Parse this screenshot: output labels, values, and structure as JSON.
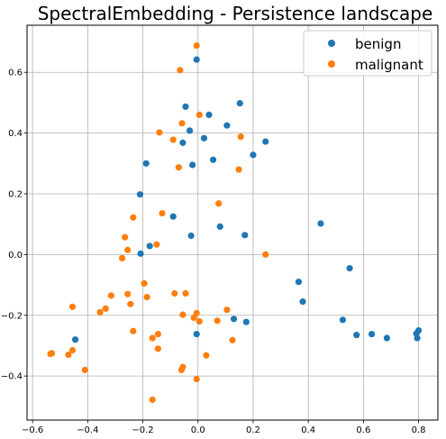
{
  "chart_data": {
    "type": "scatter",
    "title": "SpectralEmbedding - Persistence landscape",
    "xlabel": "",
    "ylabel": "",
    "xlim": [
      -0.62,
      0.87
    ],
    "ylim": [
      -0.545,
      0.755
    ],
    "xticks": [
      -0.6,
      -0.4,
      -0.2,
      0.0,
      0.2,
      0.4,
      0.6,
      0.8
    ],
    "xtick_labels": [
      "−0.6",
      "−0.4",
      "−0.2",
      "0.0",
      "0.2",
      "0.4",
      "0.6",
      "0.8"
    ],
    "yticks": [
      -0.4,
      -0.2,
      0.0,
      0.2,
      0.4,
      0.6
    ],
    "ytick_labels": [
      "−0.4",
      "−0.2",
      "0.0",
      "0.2",
      "0.4",
      "0.6"
    ],
    "grid": true,
    "legend_position": "top-right",
    "series": [
      {
        "name": "benign",
        "color": "#1f77b4",
        "points": [
          [
            -0.005,
            0.642
          ],
          [
            -0.045,
            0.487
          ],
          [
            0.152,
            0.498
          ],
          [
            -0.03,
            0.408
          ],
          [
            0.04,
            0.46
          ],
          [
            0.105,
            0.425
          ],
          [
            0.022,
            0.383
          ],
          [
            -0.055,
            0.368
          ],
          [
            0.245,
            0.372
          ],
          [
            0.2,
            0.328
          ],
          [
            0.055,
            0.312
          ],
          [
            -0.02,
            0.295
          ],
          [
            -0.188,
            0.3
          ],
          [
            -0.21,
            0.198
          ],
          [
            -0.09,
            0.125
          ],
          [
            0.08,
            0.092
          ],
          [
            -0.025,
            0.062
          ],
          [
            0.17,
            0.064
          ],
          [
            -0.175,
            0.028
          ],
          [
            -0.208,
            0.003
          ],
          [
            0.445,
            0.102
          ],
          [
            0.55,
            -0.045
          ],
          [
            0.365,
            -0.09
          ],
          [
            0.38,
            -0.155
          ],
          [
            0.525,
            -0.215
          ],
          [
            0.575,
            -0.265
          ],
          [
            0.63,
            -0.262
          ],
          [
            0.685,
            -0.275
          ],
          [
            0.8,
            -0.25
          ],
          [
            0.792,
            -0.26
          ],
          [
            0.795,
            -0.275
          ],
          [
            0.13,
            -0.212
          ],
          [
            0.175,
            -0.222
          ],
          [
            -0.005,
            -0.262
          ],
          [
            -0.445,
            -0.28
          ]
        ]
      },
      {
        "name": "malignant",
        "color": "#ff7f0e",
        "points": [
          [
            -0.005,
            0.688
          ],
          [
            -0.065,
            0.607
          ],
          [
            0.005,
            0.46
          ],
          [
            -0.058,
            0.432
          ],
          [
            -0.14,
            0.402
          ],
          [
            -0.09,
            0.378
          ],
          [
            -0.07,
            0.287
          ],
          [
            0.155,
            0.388
          ],
          [
            0.148,
            0.28
          ],
          [
            0.075,
            0.168
          ],
          [
            -0.13,
            0.136
          ],
          [
            -0.235,
            0.122
          ],
          [
            -0.265,
            0.057
          ],
          [
            -0.15,
            0.033
          ],
          [
            -0.255,
            0.015
          ],
          [
            -0.275,
            -0.012
          ],
          [
            0.245,
            0.0
          ],
          [
            -0.195,
            -0.095
          ],
          [
            -0.315,
            -0.135
          ],
          [
            -0.255,
            -0.13
          ],
          [
            -0.185,
            -0.14
          ],
          [
            -0.085,
            -0.128
          ],
          [
            -0.045,
            -0.128
          ],
          [
            -0.455,
            -0.172
          ],
          [
            -0.335,
            -0.178
          ],
          [
            -0.245,
            -0.163
          ],
          [
            -0.355,
            -0.19
          ],
          [
            0.105,
            -0.182
          ],
          [
            -0.005,
            -0.193
          ],
          [
            -0.055,
            -0.198
          ],
          [
            -0.015,
            -0.208
          ],
          [
            0.005,
            -0.22
          ],
          [
            0.07,
            -0.218
          ],
          [
            -0.235,
            -0.252
          ],
          [
            -0.165,
            -0.275
          ],
          [
            -0.145,
            -0.262
          ],
          [
            0.125,
            -0.282
          ],
          [
            -0.145,
            -0.31
          ],
          [
            0.03,
            -0.332
          ],
          [
            -0.455,
            -0.315
          ],
          [
            -0.53,
            -0.325
          ],
          [
            -0.535,
            -0.327
          ],
          [
            -0.47,
            -0.33
          ],
          [
            -0.055,
            -0.37
          ],
          [
            -0.06,
            -0.38
          ],
          [
            -0.41,
            -0.38
          ],
          [
            -0.005,
            -0.41
          ],
          [
            -0.165,
            -0.478
          ]
        ]
      }
    ]
  }
}
